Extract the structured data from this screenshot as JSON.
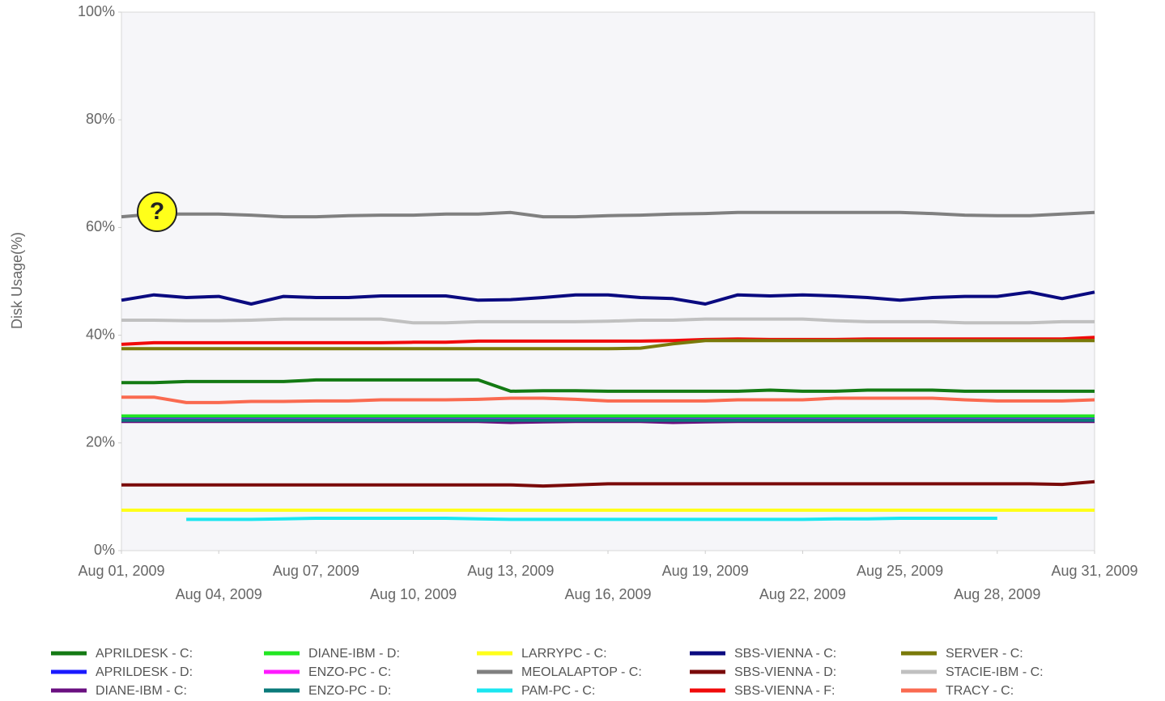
{
  "chart_data": {
    "type": "line",
    "y_label": "Disk Usage(%)",
    "xlim": [
      1,
      31
    ],
    "xticks": [
      {
        "value": 1,
        "label": "Aug 01, 2009"
      },
      {
        "value": 4,
        "label": "Aug 04, 2009"
      },
      {
        "value": 7,
        "label": "Aug 07, 2009"
      },
      {
        "value": 10,
        "label": "Aug 10, 2009"
      },
      {
        "value": 13,
        "label": "Aug 13, 2009"
      },
      {
        "value": 16,
        "label": "Aug 16, 2009"
      },
      {
        "value": 19,
        "label": "Aug 19, 2009"
      },
      {
        "value": 22,
        "label": "Aug 22, 2009"
      },
      {
        "value": 25,
        "label": "Aug 25, 2009"
      },
      {
        "value": 28,
        "label": "Aug 28, 2009"
      },
      {
        "value": 31,
        "label": "Aug 31, 2009"
      }
    ],
    "ylim": [
      0,
      100
    ],
    "yticks": [
      {
        "value": 0,
        "label": "0%"
      },
      {
        "value": 20,
        "label": "20%"
      },
      {
        "value": 40,
        "label": "40%"
      },
      {
        "value": 60,
        "label": "60%"
      },
      {
        "value": 80,
        "label": "80%"
      },
      {
        "value": 100,
        "label": "100%"
      }
    ],
    "grid": false,
    "legend": "bottom",
    "x": [
      1,
      2,
      3,
      4,
      5,
      6,
      7,
      8,
      9,
      10,
      11,
      12,
      13,
      14,
      15,
      16,
      17,
      18,
      19,
      20,
      21,
      22,
      23,
      24,
      25,
      26,
      27,
      28,
      29,
      30,
      31
    ],
    "series": [
      {
        "name": "APRILDESK - C:",
        "color": "#137a13",
        "values": [
          31.2,
          31.2,
          31.4,
          31.4,
          31.4,
          31.4,
          31.7,
          31.7,
          31.7,
          31.7,
          31.7,
          31.7,
          29.6,
          29.7,
          29.7,
          29.6,
          29.6,
          29.6,
          29.6,
          29.6,
          29.8,
          29.6,
          29.6,
          29.8,
          29.8,
          29.8,
          29.6,
          29.6,
          29.6,
          29.6,
          29.6
        ]
      },
      {
        "name": "APRILDESK - D:",
        "color": "#1a1aff",
        "values": [
          24.5,
          24.5,
          24.5,
          24.5,
          24.5,
          24.5,
          24.5,
          24.5,
          24.5,
          24.5,
          24.5,
          24.5,
          24.5,
          24.5,
          24.5,
          24.5,
          24.5,
          24.5,
          24.5,
          24.5,
          24.5,
          24.5,
          24.5,
          24.5,
          24.5,
          24.5,
          24.5,
          24.5,
          24.5,
          24.5,
          24.5
        ]
      },
      {
        "name": "DIANE-IBM - C:",
        "color": "#6a0f80",
        "values": [
          24,
          24,
          24,
          24,
          24,
          24,
          24,
          24,
          24,
          24,
          24,
          24,
          23.8,
          23.9,
          24,
          24,
          24,
          23.8,
          23.9,
          24,
          24,
          24,
          24,
          24,
          24,
          24,
          24,
          24,
          24,
          24,
          24
        ]
      },
      {
        "name": "DIANE-IBM - D:",
        "color": "#22e622",
        "values": [
          25,
          25,
          25,
          25,
          25,
          25,
          25,
          25,
          25,
          25,
          25,
          25,
          25,
          25,
          25,
          25,
          25,
          25,
          25,
          25,
          25,
          25,
          25,
          25,
          25,
          25,
          25,
          25,
          25,
          25,
          25
        ]
      },
      {
        "name": "ENZO-PC - C:",
        "color": "#ff1aff",
        "values": [
          24.3,
          24.3,
          24.3,
          24.3,
          24.3,
          24.3,
          24.3,
          24.3,
          24.3,
          24.3,
          24.3,
          24.3,
          24.3,
          24.3,
          24.3,
          24.3,
          24.3,
          24.3,
          24.3,
          24.3,
          24.3,
          24.3,
          24.3,
          24.3,
          24.3,
          24.3,
          24.3,
          24.3,
          24.3,
          24.3,
          24.3
        ]
      },
      {
        "name": "ENZO-PC - D:",
        "color": "#0a7a7a",
        "values": [
          24.2,
          24.2,
          24.2,
          24.2,
          24.2,
          24.2,
          24.2,
          24.2,
          24.2,
          24.2,
          24.2,
          24.2,
          24.2,
          24.2,
          24.2,
          24.2,
          24.2,
          24.2,
          24.2,
          24.2,
          24.2,
          24.2,
          24.2,
          24.2,
          24.2,
          24.2,
          24.2,
          24.2,
          24.2,
          24.2,
          24.2
        ]
      },
      {
        "name": "LARRYPC - C:",
        "color": "#ffff1a",
        "values": [
          7.5,
          7.5,
          7.5,
          7.5,
          7.5,
          7.5,
          7.5,
          7.5,
          7.5,
          7.5,
          7.5,
          7.5,
          7.5,
          7.5,
          7.5,
          7.5,
          7.5,
          7.5,
          7.5,
          7.5,
          7.5,
          7.5,
          7.5,
          7.5,
          7.5,
          7.5,
          7.5,
          7.5,
          7.5,
          7.5,
          7.5
        ]
      },
      {
        "name": "MEOLALAPTOP - C:",
        "color": "#808080",
        "values": [
          62,
          62.5,
          62.5,
          62.5,
          62.3,
          62,
          62,
          62.2,
          62.3,
          62.3,
          62.5,
          62.5,
          62.8,
          62,
          62,
          62.2,
          62.3,
          62.5,
          62.6,
          62.8,
          62.8,
          62.8,
          62.8,
          62.8,
          62.8,
          62.6,
          62.3,
          62.2,
          62.2,
          62.5,
          62.8
        ]
      },
      {
        "name": "PAM-PC - C:",
        "color": "#1ae6f0",
        "values": [
          null,
          null,
          5.8,
          5.8,
          5.8,
          5.9,
          6,
          6,
          6,
          6,
          6,
          5.9,
          5.8,
          5.8,
          5.8,
          5.8,
          5.8,
          5.8,
          5.8,
          5.8,
          5.8,
          5.8,
          5.9,
          5.9,
          6,
          6,
          6,
          6,
          null,
          null,
          null
        ]
      },
      {
        "name": "SBS-VIENNA - C:",
        "color": "#0a0a80",
        "values": [
          46.5,
          47.5,
          47,
          47.2,
          45.8,
          47.2,
          47,
          47,
          47.3,
          47.3,
          47.3,
          46.5,
          46.6,
          47,
          47.5,
          47.5,
          47,
          46.8,
          45.8,
          47.5,
          47.3,
          47.5,
          47.3,
          47,
          46.5,
          47,
          47.2,
          47.2,
          48,
          46.8,
          48
        ]
      },
      {
        "name": "SBS-VIENNA - D:",
        "color": "#7a0a0a",
        "values": [
          12.2,
          12.2,
          12.2,
          12.2,
          12.2,
          12.2,
          12.2,
          12.2,
          12.2,
          12.2,
          12.2,
          12.2,
          12.2,
          12,
          12.2,
          12.4,
          12.4,
          12.4,
          12.4,
          12.4,
          12.4,
          12.4,
          12.4,
          12.4,
          12.4,
          12.4,
          12.4,
          12.4,
          12.4,
          12.3,
          12.8
        ]
      },
      {
        "name": "SBS-VIENNA - F:",
        "color": "#f00a0a",
        "values": [
          38.3,
          38.6,
          38.6,
          38.6,
          38.6,
          38.6,
          38.6,
          38.6,
          38.6,
          38.7,
          38.7,
          38.9,
          38.9,
          38.9,
          38.9,
          38.9,
          38.9,
          39,
          39.2,
          39.3,
          39.2,
          39.2,
          39.2,
          39.3,
          39.3,
          39.3,
          39.3,
          39.3,
          39.3,
          39.3,
          39.6
        ]
      },
      {
        "name": "SERVER - C:",
        "color": "#7a7a0a",
        "values": [
          37.5,
          37.5,
          37.5,
          37.5,
          37.5,
          37.5,
          37.5,
          37.5,
          37.5,
          37.5,
          37.5,
          37.5,
          37.5,
          37.5,
          37.5,
          37.5,
          37.6,
          38.4,
          39,
          39,
          39,
          39,
          39,
          39,
          39,
          39,
          39,
          39,
          39,
          39,
          39
        ]
      },
      {
        "name": "STACIE-IBM - C:",
        "color": "#c0c0c0",
        "values": [
          42.8,
          42.8,
          42.7,
          42.7,
          42.8,
          43,
          43,
          43,
          43,
          42.3,
          42.3,
          42.5,
          42.5,
          42.5,
          42.5,
          42.6,
          42.8,
          42.8,
          43,
          43,
          43,
          43,
          42.7,
          42.5,
          42.5,
          42.5,
          42.3,
          42.3,
          42.3,
          42.5,
          42.5
        ]
      },
      {
        "name": "TRACY - C:",
        "color": "#fa6a50",
        "values": [
          28.5,
          28.5,
          27.5,
          27.5,
          27.7,
          27.7,
          27.8,
          27.8,
          28,
          28,
          28,
          28.1,
          28.3,
          28.3,
          28.1,
          27.8,
          27.8,
          27.8,
          27.8,
          28,
          28,
          28,
          28.3,
          28.3,
          28.3,
          28.3,
          28,
          27.8,
          27.8,
          27.8,
          28
        ]
      }
    ]
  }
}
